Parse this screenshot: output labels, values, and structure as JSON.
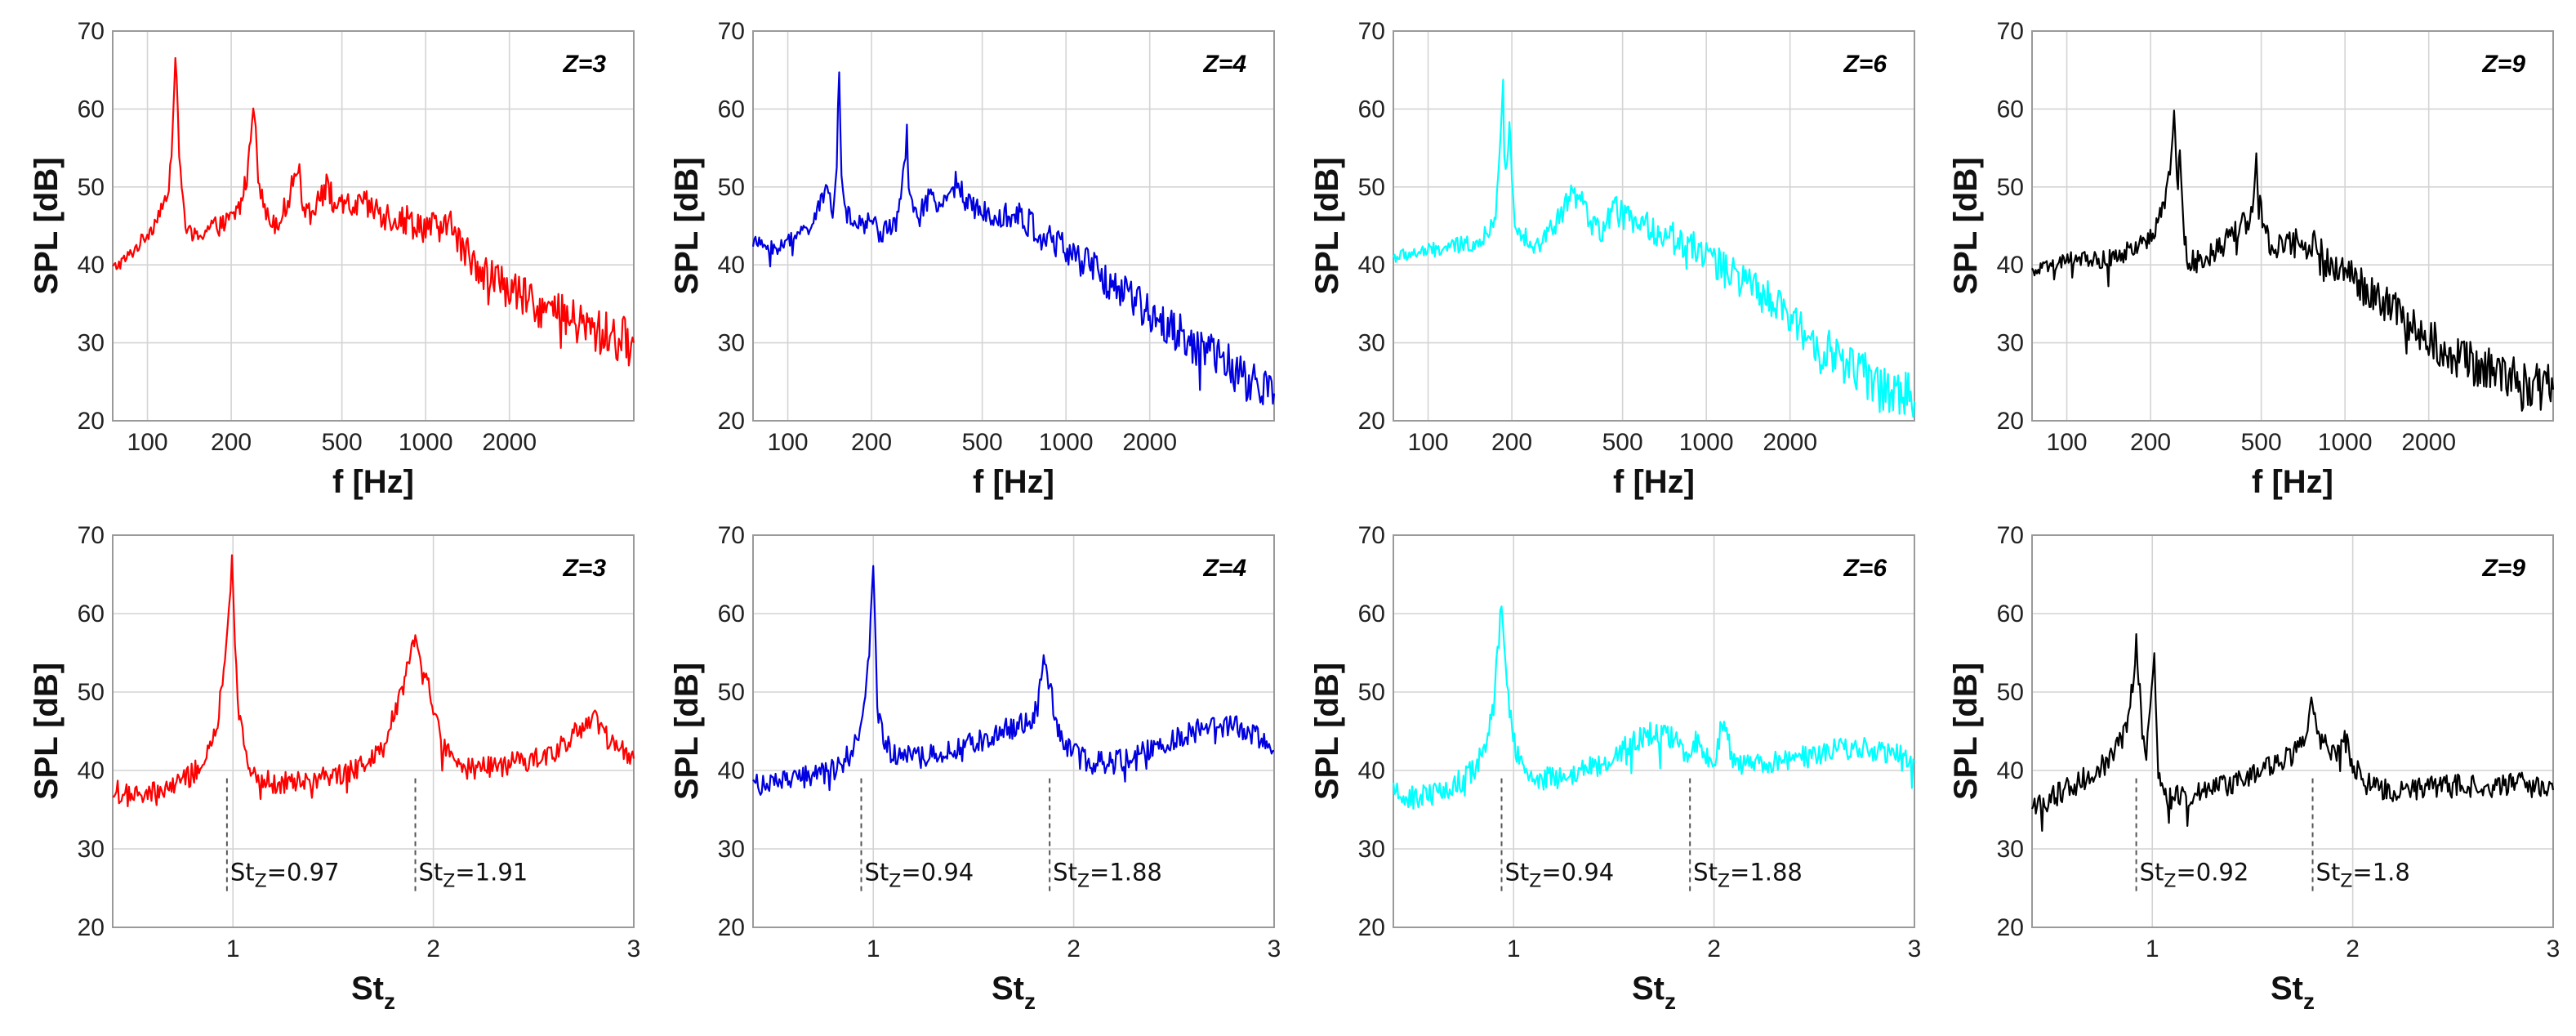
{
  "chart_data": [
    {
      "type": "line",
      "row": "spectrum",
      "title": "Z=3",
      "color": "#ff0000",
      "xscale": "log",
      "xlim": [
        75,
        5600
      ],
      "ylim": [
        20,
        70
      ],
      "yticks": [
        20,
        30,
        40,
        50,
        60,
        70
      ],
      "xticks": [
        100,
        200,
        500,
        1000,
        2000
      ],
      "xticklabels": [
        "100",
        "200",
        "500",
        "1000",
        "2000"
      ],
      "xlabel": "f [Hz]",
      "ylabel": "SPL [dB]",
      "grid": true,
      "series": [
        {
          "name": "SPL",
          "x": [
            75,
            85,
            95,
            105,
            112,
            118,
            122,
            126,
            130,
            137,
            145,
            155,
            170,
            185,
            200,
            215,
            230,
            240,
            245,
            250,
            258,
            270,
            290,
            310,
            330,
            345,
            355,
            365,
            385,
            410,
            440,
            470,
            490,
            510,
            560,
            620,
            700,
            800,
            900,
            1000,
            1100,
            1200,
            1230,
            1260,
            1300,
            1400,
            1600,
            1800,
            2000,
            2300,
            2600,
            3000,
            3500,
            4000,
            4500,
            5000,
            5600
          ],
          "y": [
            39.5,
            41,
            43,
            45,
            47.5,
            48,
            55,
            67.5,
            54,
            45,
            43.5,
            44,
            45,
            45,
            46,
            47.5,
            52,
            61.5,
            58,
            52,
            48.5,
            46,
            45.5,
            47,
            50,
            53,
            50.5,
            47.5,
            47,
            48.5,
            50,
            48,
            47,
            47.5,
            47.5,
            47.5,
            46.5,
            46,
            45.5,
            45,
            44.5,
            44,
            48.5,
            44,
            43,
            41.5,
            39.5,
            38,
            37,
            35.5,
            34.5,
            33.5,
            32.5,
            31.5,
            31,
            30.5,
            30
          ]
        }
      ],
      "annotations": []
    },
    {
      "type": "line",
      "row": "spectrum",
      "title": "Z=4",
      "color": "#0000e0",
      "xscale": "log",
      "xlim": [
        75,
        5600
      ],
      "ylim": [
        20,
        70
      ],
      "yticks": [
        20,
        30,
        40,
        50,
        60,
        70
      ],
      "xticks": [
        100,
        200,
        500,
        1000,
        2000
      ],
      "xticklabels": [
        "100",
        "200",
        "500",
        "1000",
        "2000"
      ],
      "xlabel": "f [Hz]",
      "ylabel": "SPL [dB]",
      "grid": true,
      "series": [
        {
          "name": "SPL",
          "x": [
            75,
            90,
            105,
            120,
            130,
            140,
            145,
            150,
            153,
            156,
            160,
            170,
            185,
            200,
            215,
            230,
            250,
            262,
            268,
            272,
            280,
            295,
            320,
            350,
            380,
            410,
            430,
            460,
            500,
            560,
            620,
            700,
            800,
            900,
            1000,
            1200,
            1400,
            1600,
            1800,
            2000,
            2300,
            2600,
            3000,
            3500,
            4000,
            4500,
            5000,
            5600
          ],
          "y": [
            43,
            42,
            43.5,
            45,
            47.5,
            50,
            47,
            53,
            65.5,
            52,
            47,
            45.5,
            45,
            46,
            44,
            45,
            46,
            52,
            58,
            50,
            47,
            46,
            48.5,
            47,
            50,
            51,
            48,
            47,
            47,
            47,
            46.5,
            46,
            44,
            43,
            42,
            40,
            38,
            36.5,
            35,
            34,
            32.5,
            31,
            29.5,
            28,
            26.5,
            25,
            24,
            23.5
          ]
        }
      ],
      "annotations": []
    },
    {
      "type": "line",
      "row": "spectrum",
      "title": "Z=6",
      "color": "#00ffff",
      "xscale": "log",
      "xlim": [
        75,
        5600
      ],
      "ylim": [
        20,
        70
      ],
      "yticks": [
        20,
        30,
        40,
        50,
        60,
        70
      ],
      "xticks": [
        100,
        200,
        500,
        1000,
        2000
      ],
      "xticklabels": [
        "100",
        "200",
        "500",
        "1000",
        "2000"
      ],
      "xlabel": "f [Hz]",
      "ylabel": "SPL [dB]",
      "grid": true,
      "series": [
        {
          "name": "SPL",
          "x": [
            75,
            90,
            110,
            130,
            150,
            165,
            175,
            182,
            186,
            188,
            192,
            196,
            200,
            205,
            210,
            220,
            235,
            250,
            270,
            290,
            310,
            330,
            350,
            380,
            410,
            440,
            470,
            500,
            540,
            590,
            650,
            720,
            800,
            900,
            1000,
            1100,
            1200,
            1400,
            1600,
            1800,
            2000,
            2300,
            2600,
            3000,
            3500,
            4000,
            4500,
            5000,
            5600
          ],
          "y": [
            41,
            41.5,
            42,
            42.5,
            43,
            44,
            47,
            55,
            63,
            55,
            52,
            59,
            50,
            46,
            45,
            44,
            43,
            42.5,
            44,
            45.5,
            47.5,
            49,
            48.5,
            46,
            44,
            45.5,
            47,
            46.5,
            45.5,
            45,
            44.5,
            44,
            43,
            42.5,
            41.5,
            40,
            39,
            37.5,
            36,
            34.5,
            33,
            31,
            29.5,
            28,
            26.5,
            25,
            24,
            23.5,
            22.5
          ]
        }
      ],
      "annotations": []
    },
    {
      "type": "line",
      "row": "spectrum",
      "title": "Z=9",
      "color": "#000000",
      "xscale": "log",
      "xlim": [
        75,
        5600
      ],
      "ylim": [
        20,
        70
      ],
      "yticks": [
        20,
        30,
        40,
        50,
        60,
        70
      ],
      "xticks": [
        100,
        200,
        500,
        1000,
        2000
      ],
      "xticklabels": [
        "100",
        "200",
        "500",
        "1000",
        "2000"
      ],
      "xlabel": "f [Hz]",
      "ylabel": "SPL [dB]",
      "grid": true,
      "series": [
        {
          "name": "SPL",
          "x": [
            75,
            90,
            110,
            130,
            150,
            170,
            190,
            210,
            225,
            235,
            243,
            247,
            251,
            255,
            260,
            265,
            270,
            290,
            320,
            350,
            380,
            420,
            450,
            470,
            480,
            490,
            505,
            520,
            545,
            600,
            680,
            720,
            760,
            790,
            830,
            900,
            1000,
            1100,
            1200,
            1400,
            1600,
            1800,
            2000,
            2300,
            2600,
            3000,
            3500,
            4000,
            4500,
            5000,
            5600
          ],
          "y": [
            39,
            40,
            41,
            40.5,
            41,
            42,
            43,
            45,
            48,
            52,
            59.5,
            53,
            51,
            55,
            48,
            44,
            41,
            40.5,
            41,
            42,
            43.5,
            45,
            46,
            48,
            53,
            47,
            48,
            44,
            42.5,
            42,
            43,
            41.5,
            43,
            43,
            41,
            40,
            39.5,
            38,
            36.5,
            35,
            33.5,
            32,
            30.5,
            29,
            28,
            27,
            26.5,
            25.5,
            25,
            24.5,
            24
          ]
        }
      ],
      "annotations": []
    },
    {
      "type": "line",
      "row": "strouhal",
      "title": "Z=3",
      "color": "#ff0000",
      "xscale": "linear",
      "xlim": [
        0.4,
        3
      ],
      "ylim": [
        20,
        70
      ],
      "yticks": [
        20,
        30,
        40,
        50,
        60,
        70
      ],
      "xticks": [
        1,
        2,
        3
      ],
      "xticklabels": [
        "1",
        "2",
        "3"
      ],
      "xlabel": "St",
      "xlabel_sub": "z",
      "ylabel": "SPL [dB]",
      "grid": true,
      "series": [
        {
          "name": "SPL",
          "x": [
            0.4,
            0.5,
            0.6,
            0.7,
            0.8,
            0.88,
            0.93,
            0.96,
            0.98,
            0.995,
            1.01,
            1.03,
            1.06,
            1.1,
            1.2,
            1.3,
            1.4,
            1.5,
            1.6,
            1.7,
            1.75,
            1.8,
            1.85,
            1.88,
            1.91,
            1.94,
            1.97,
            2.0,
            2.05,
            2.1,
            2.2,
            2.3,
            2.4,
            2.5,
            2.6,
            2.7,
            2.75,
            2.8,
            2.85,
            2.9,
            3.0
          ],
          "y": [
            37.5,
            36.5,
            37,
            38,
            39.5,
            42,
            47,
            55,
            60,
            68,
            55,
            47,
            42,
            40,
            38.5,
            38.5,
            39,
            39.5,
            40,
            42,
            44,
            47,
            51,
            55,
            56.5,
            52,
            51.5,
            48,
            43,
            41,
            40,
            40.5,
            41,
            41.5,
            42.5,
            44.5,
            46,
            47,
            45,
            43,
            41.5
          ]
        }
      ],
      "annotations": [
        {
          "x": 0.97,
          "text": "St",
          "sub": "Z",
          "value": "=0.97"
        },
        {
          "x": 1.91,
          "text": "St",
          "sub": "Z",
          "value": "=1.91"
        }
      ]
    },
    {
      "type": "line",
      "row": "strouhal",
      "title": "Z=4",
      "color": "#0000e0",
      "xscale": "linear",
      "xlim": [
        0.4,
        3
      ],
      "ylim": [
        20,
        70
      ],
      "yticks": [
        20,
        30,
        40,
        50,
        60,
        70
      ],
      "xticks": [
        1,
        2,
        3
      ],
      "xticklabels": [
        "1",
        "2",
        "3"
      ],
      "xlabel": "St",
      "xlabel_sub": "z",
      "ylabel": "SPL [dB]",
      "grid": true,
      "series": [
        {
          "name": "SPL",
          "x": [
            0.4,
            0.5,
            0.6,
            0.7,
            0.8,
            0.88,
            0.92,
            0.94,
            0.96,
            0.98,
            1.0,
            1.02,
            1.05,
            1.1,
            1.2,
            1.3,
            1.4,
            1.5,
            1.6,
            1.7,
            1.78,
            1.82,
            1.85,
            1.88,
            1.91,
            1.95,
            2.0,
            2.1,
            2.2,
            2.3,
            2.4,
            2.5,
            2.6,
            2.7,
            2.8,
            2.9,
            3.0
          ],
          "y": [
            38.5,
            38,
            39,
            39.5,
            40,
            42,
            44,
            46,
            50,
            55,
            66,
            48,
            44,
            42,
            41.5,
            42,
            42.5,
            43.5,
            44.5,
            45.5,
            46,
            48,
            55,
            51,
            46,
            44,
            42,
            41,
            41,
            42,
            43,
            44,
            45,
            45.5,
            46,
            44.5,
            42.5
          ]
        }
      ],
      "annotations": [
        {
          "x": 0.94,
          "text": "St",
          "sub": "Z",
          "value": "=0.94"
        },
        {
          "x": 1.88,
          "text": "St",
          "sub": "Z",
          "value": "=1.88"
        }
      ]
    },
    {
      "type": "line",
      "row": "strouhal",
      "title": "Z=6",
      "color": "#00ffff",
      "xscale": "linear",
      "xlim": [
        0.4,
        3
      ],
      "ylim": [
        20,
        70
      ],
      "yticks": [
        20,
        30,
        40,
        50,
        60,
        70
      ],
      "xticks": [
        1,
        2,
        3
      ],
      "xticklabels": [
        "1",
        "2",
        "3"
      ],
      "xlabel": "St",
      "xlabel_sub": "z",
      "ylabel": "SPL [dB]",
      "grid": true,
      "series": [
        {
          "name": "SPL",
          "x": [
            0.4,
            0.5,
            0.6,
            0.7,
            0.8,
            0.86,
            0.9,
            0.92,
            0.94,
            0.96,
            0.98,
            1.01,
            1.05,
            1.1,
            1.2,
            1.3,
            1.4,
            1.5,
            1.6,
            1.7,
            1.8,
            1.85,
            1.88,
            1.92,
            1.96,
            2.0,
            2.05,
            2.1,
            2.2,
            2.3,
            2.4,
            2.5,
            2.6,
            2.7,
            2.8,
            2.9,
            3.0
          ],
          "y": [
            37,
            36.5,
            37,
            38,
            40,
            43,
            48,
            55,
            61,
            53,
            48,
            43,
            40,
            39,
            39,
            39.5,
            40.5,
            42,
            43.5,
            45,
            44,
            42,
            43,
            44,
            42,
            41,
            47,
            41,
            40.5,
            41,
            41.5,
            42,
            42.5,
            43,
            42.5,
            42,
            41
          ]
        }
      ],
      "annotations": [
        {
          "x": 0.94,
          "text": "St",
          "sub": "Z",
          "value": "=0.94"
        },
        {
          "x": 1.88,
          "text": "St",
          "sub": "Z",
          "value": "=1.88"
        }
      ]
    },
    {
      "type": "line",
      "row": "strouhal",
      "title": "Z=9",
      "color": "#000000",
      "xscale": "linear",
      "xlim": [
        0.4,
        3
      ],
      "ylim": [
        20,
        70
      ],
      "yticks": [
        20,
        30,
        40,
        50,
        60,
        70
      ],
      "xticks": [
        1,
        2,
        3
      ],
      "xticklabels": [
        "1",
        "2",
        "3"
      ],
      "xlabel": "St",
      "xlabel_sub": "z",
      "ylabel": "SPL [dB]",
      "grid": true,
      "series": [
        {
          "name": "SPL",
          "x": [
            0.4,
            0.5,
            0.6,
            0.7,
            0.8,
            0.85,
            0.89,
            0.92,
            0.95,
            0.97,
            0.99,
            1.01,
            1.03,
            1.06,
            1.1,
            1.2,
            1.3,
            1.4,
            1.5,
            1.6,
            1.7,
            1.75,
            1.8,
            1.84,
            1.88,
            1.92,
            1.96,
            2.0,
            2.05,
            2.1,
            2.2,
            2.3,
            2.4,
            2.5,
            2.6,
            2.7,
            2.8,
            2.9,
            3.0
          ],
          "y": [
            35.5,
            36.5,
            38,
            39.5,
            41.5,
            44,
            48,
            56.5,
            45,
            42,
            49,
            55.5,
            40,
            37,
            36.5,
            37,
            38,
            38.5,
            39.5,
            41,
            42,
            44,
            49,
            44,
            43,
            42.5,
            44,
            41,
            38.5,
            38,
            37.5,
            37.5,
            38,
            38,
            38,
            38,
            38.5,
            38,
            37.5
          ]
        }
      ],
      "annotations": [
        {
          "x": 0.92,
          "text": "St",
          "sub": "Z",
          "value": "=0.92"
        },
        {
          "x": 1.8,
          "text": "St",
          "sub": "Z",
          "value": "=1.8"
        }
      ]
    }
  ]
}
